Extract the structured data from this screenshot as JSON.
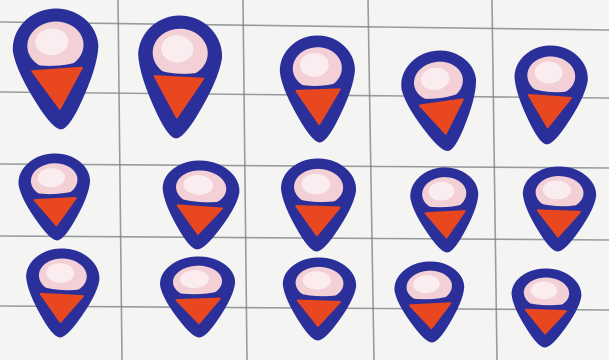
{
  "colors": {
    "paper": "#f4f5f2",
    "grid_line": "#7a7d83",
    "outline": "#2a2f9a",
    "cap_fill": "#f3cfd6",
    "cone_fill": "#e8471f",
    "highlight": "#fbf3f5"
  },
  "subject": "hand-drawn-ice-cream-cones",
  "rows": 3,
  "items": [
    {
      "row": 1,
      "col": 1
    },
    {
      "row": 1,
      "col": 2
    },
    {
      "row": 1,
      "col": 3
    },
    {
      "row": 1,
      "col": 4
    },
    {
      "row": 1,
      "col": 5
    },
    {
      "row": 2,
      "col": 1
    },
    {
      "row": 2,
      "col": 2
    },
    {
      "row": 2,
      "col": 3
    },
    {
      "row": 2,
      "col": 4
    },
    {
      "row": 2,
      "col": 5
    },
    {
      "row": 3,
      "col": 1
    },
    {
      "row": 3,
      "col": 2
    },
    {
      "row": 3,
      "col": 3
    },
    {
      "row": 3,
      "col": 4
    },
    {
      "row": 3,
      "col": 5
    }
  ]
}
